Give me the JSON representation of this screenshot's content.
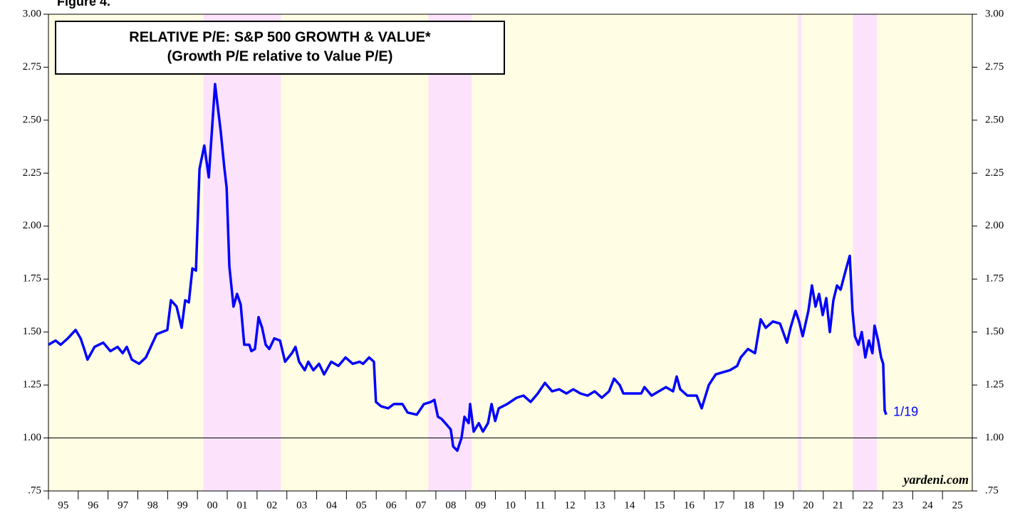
{
  "chart_data": {
    "type": "line",
    "figure_label": "Figure 4.",
    "title": "RELATIVE P/E: S&P 500 GROWTH & VALUE*",
    "subtitle": "(Growth P/E relative to Value P/E)",
    "source": "yardeni.com",
    "background": "#fffde3",
    "shaded_periods": [
      {
        "start": 2000.2,
        "end": 2002.8,
        "color": "#fce3fb"
      },
      {
        "start": 2007.75,
        "end": 2009.2,
        "color": "#fce3fb"
      },
      {
        "start": 2020.15,
        "end": 2020.27,
        "color": "#fce3fb"
      },
      {
        "start": 2022.0,
        "end": 2022.8,
        "color": "#fce3fb"
      }
    ],
    "reference_line": 1,
    "xlim": [
      1995,
      2026
    ],
    "xticks": [
      {
        "value": 1995,
        "label": "95"
      },
      {
        "value": 1996,
        "label": "96"
      },
      {
        "value": 1997,
        "label": "97"
      },
      {
        "value": 1998,
        "label": "98"
      },
      {
        "value": 1999,
        "label": "99"
      },
      {
        "value": 2000,
        "label": "00"
      },
      {
        "value": 2001,
        "label": "01"
      },
      {
        "value": 2002,
        "label": "02"
      },
      {
        "value": 2003,
        "label": "03"
      },
      {
        "value": 2004,
        "label": "04"
      },
      {
        "value": 2005,
        "label": "05"
      },
      {
        "value": 2006,
        "label": "06"
      },
      {
        "value": 2007,
        "label": "07"
      },
      {
        "value": 2008,
        "label": "08"
      },
      {
        "value": 2009,
        "label": "09"
      },
      {
        "value": 2010,
        "label": "10"
      },
      {
        "value": 2011,
        "label": "11"
      },
      {
        "value": 2012,
        "label": "12"
      },
      {
        "value": 2013,
        "label": "13"
      },
      {
        "value": 2014,
        "label": "14"
      },
      {
        "value": 2015,
        "label": "15"
      },
      {
        "value": 2016,
        "label": "16"
      },
      {
        "value": 2017,
        "label": "17"
      },
      {
        "value": 2018,
        "label": "18"
      },
      {
        "value": 2019,
        "label": "19"
      },
      {
        "value": 2020,
        "label": "20"
      },
      {
        "value": 2021,
        "label": "21"
      },
      {
        "value": 2022,
        "label": "22"
      },
      {
        "value": 2023,
        "label": "23"
      },
      {
        "value": 2024,
        "label": "24"
      },
      {
        "value": 2025,
        "label": "25"
      }
    ],
    "ylim": [
      0.75,
      3
    ],
    "yticks": [
      {
        "value": 0.75,
        "label": ".75"
      },
      {
        "value": 1,
        "label": "1.00"
      },
      {
        "value": 1.25,
        "label": "1.25"
      },
      {
        "value": 1.5,
        "label": "1.50"
      },
      {
        "value": 1.75,
        "label": "1.75"
      },
      {
        "value": 2,
        "label": "2.00"
      },
      {
        "value": 2.25,
        "label": "2.25"
      },
      {
        "value": 2.5,
        "label": "2.50"
      },
      {
        "value": 2.75,
        "label": "2.75"
      },
      {
        "value": 3,
        "label": "3.00"
      }
    ],
    "annotation": "1/19",
    "series": [
      {
        "name": "Relative P/E",
        "color": "#0000ff",
        "x": [
          1995.0,
          1995.24,
          1995.41,
          1995.65,
          1995.91,
          1996.08,
          1996.2,
          1996.31,
          1996.55,
          1996.84,
          1997.08,
          1997.32,
          1997.49,
          1997.63,
          1997.8,
          1998.04,
          1998.27,
          1998.63,
          1998.99,
          1999.11,
          1999.3,
          1999.47,
          1999.59,
          1999.71,
          1999.83,
          1999.95,
          2000.07,
          2000.23,
          2000.38,
          2000.59,
          2000.78,
          2000.9,
          2000.98,
          2001.07,
          2001.21,
          2001.33,
          2001.45,
          2001.57,
          2001.74,
          2001.81,
          2001.93,
          2002.05,
          2002.17,
          2002.29,
          2002.41,
          2002.58,
          2002.77,
          2002.94,
          2003.17,
          2003.29,
          2003.41,
          2003.6,
          2003.72,
          2003.89,
          2004.08,
          2004.25,
          2004.49,
          2004.73,
          2004.97,
          2005.21,
          2005.44,
          2005.56,
          2005.76,
          2005.92,
          2005.99,
          2006.16,
          2006.4,
          2006.59,
          2006.88,
          2007.05,
          2007.36,
          2007.6,
          2007.83,
          2007.95,
          2008.07,
          2008.19,
          2008.38,
          2008.5,
          2008.58,
          2008.72,
          2008.86,
          2008.96,
          2009.1,
          2009.15,
          2009.27,
          2009.44,
          2009.58,
          2009.75,
          2009.87,
          2009.99,
          2010.11,
          2010.39,
          2010.71,
          2010.94,
          2011.18,
          2011.42,
          2011.66,
          2011.9,
          2012.14,
          2012.38,
          2012.61,
          2012.85,
          2013.09,
          2013.33,
          2013.57,
          2013.81,
          2013.98,
          2014.17,
          2014.29,
          2014.53,
          2014.89,
          2015.0,
          2015.24,
          2015.48,
          2015.72,
          2015.96,
          2016.08,
          2016.2,
          2016.44,
          2016.75,
          2016.92,
          2017.16,
          2017.39,
          2017.63,
          2017.87,
          2018.11,
          2018.23,
          2018.47,
          2018.71,
          2018.9,
          2019.07,
          2019.31,
          2019.55,
          2019.78,
          2019.9,
          2020.07,
          2020.19,
          2020.31,
          2020.5,
          2020.62,
          2020.74,
          2020.86,
          2020.98,
          2021.1,
          2021.22,
          2021.34,
          2021.46,
          2021.58,
          2021.77,
          2021.89,
          2021.98,
          2022.06,
          2022.18,
          2022.29,
          2022.41,
          2022.53,
          2022.65,
          2022.72,
          2022.84,
          2022.94,
          2023.01,
          2023.06,
          2023.11
        ],
        "values": [
          1.44,
          1.46,
          1.44,
          1.47,
          1.51,
          1.47,
          1.42,
          1.37,
          1.43,
          1.45,
          1.41,
          1.43,
          1.4,
          1.43,
          1.37,
          1.35,
          1.38,
          1.49,
          1.51,
          1.65,
          1.62,
          1.52,
          1.65,
          1.64,
          1.8,
          1.79,
          2.27,
          2.38,
          2.23,
          2.67,
          2.45,
          2.28,
          2.18,
          1.81,
          1.62,
          1.68,
          1.63,
          1.44,
          1.44,
          1.41,
          1.42,
          1.57,
          1.52,
          1.44,
          1.42,
          1.47,
          1.46,
          1.36,
          1.4,
          1.43,
          1.36,
          1.32,
          1.36,
          1.32,
          1.35,
          1.3,
          1.36,
          1.34,
          1.38,
          1.35,
          1.36,
          1.35,
          1.38,
          1.36,
          1.17,
          1.15,
          1.14,
          1.16,
          1.16,
          1.12,
          1.11,
          1.16,
          1.17,
          1.18,
          1.1,
          1.09,
          1.06,
          1.04,
          0.96,
          0.94,
          1.0,
          1.1,
          1.07,
          1.16,
          1.03,
          1.07,
          1.03,
          1.07,
          1.16,
          1.08,
          1.14,
          1.16,
          1.19,
          1.2,
          1.17,
          1.21,
          1.26,
          1.22,
          1.23,
          1.21,
          1.23,
          1.21,
          1.2,
          1.22,
          1.19,
          1.22,
          1.28,
          1.25,
          1.21,
          1.21,
          1.21,
          1.24,
          1.2,
          1.22,
          1.24,
          1.22,
          1.29,
          1.23,
          1.2,
          1.2,
          1.14,
          1.25,
          1.3,
          1.31,
          1.32,
          1.34,
          1.38,
          1.42,
          1.4,
          1.56,
          1.52,
          1.55,
          1.54,
          1.45,
          1.52,
          1.6,
          1.55,
          1.48,
          1.6,
          1.72,
          1.62,
          1.68,
          1.58,
          1.66,
          1.5,
          1.65,
          1.72,
          1.7,
          1.8,
          1.86,
          1.6,
          1.48,
          1.44,
          1.5,
          1.38,
          1.46,
          1.4,
          1.53,
          1.46,
          1.38,
          1.35,
          1.13,
          1.11
        ]
      }
    ]
  }
}
